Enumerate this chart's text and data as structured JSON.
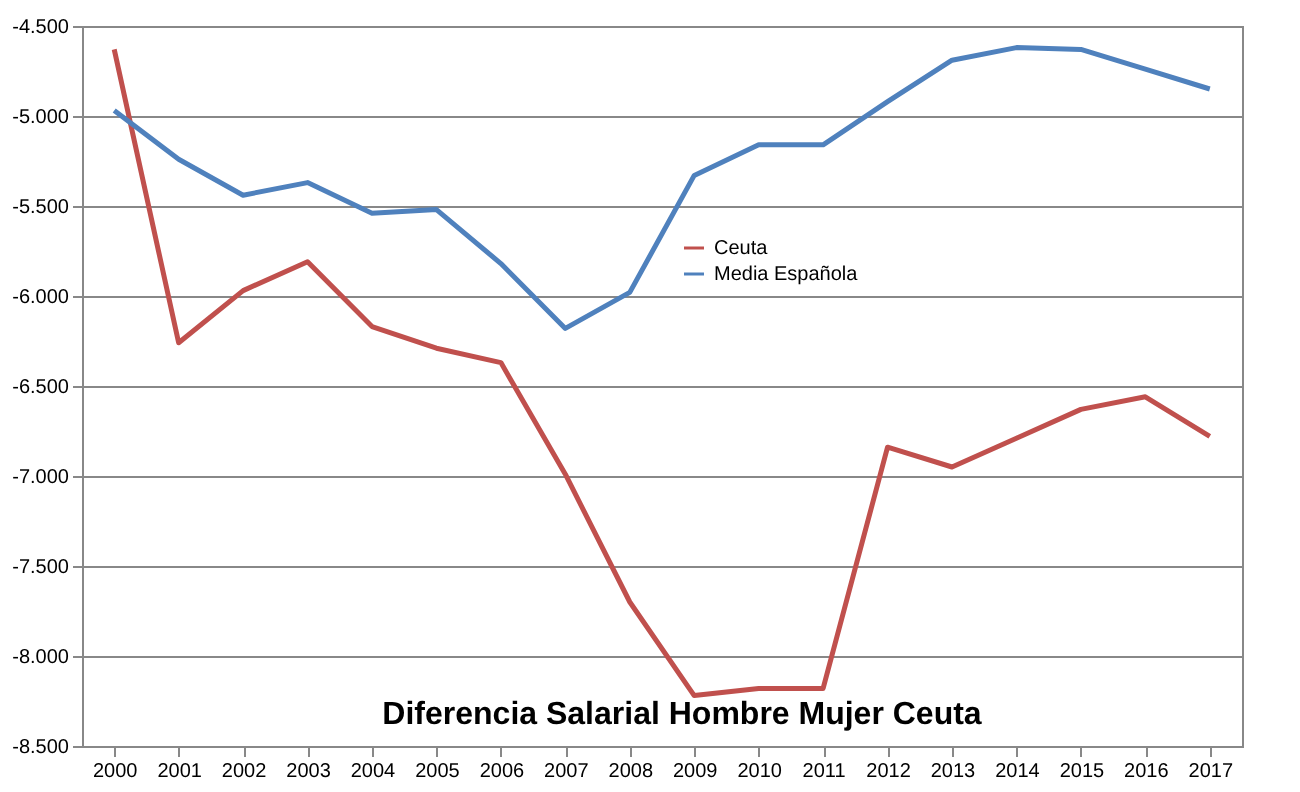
{
  "chart_data": {
    "type": "line",
    "title": "Diferencia  Salarial Hombre Mujer Ceuta",
    "categories": [
      "2000",
      "2001",
      "2002",
      "2003",
      "2004",
      "2005",
      "2006",
      "2007",
      "2008",
      "2009",
      "2010",
      "2011",
      "2012",
      "2013",
      "2014",
      "2015",
      "2016",
      "2017"
    ],
    "series": [
      {
        "name": "Ceuta",
        "color": "#c0504d",
        "values": [
          -4630,
          -6260,
          -5970,
          -5810,
          -6170,
          -6290,
          -6370,
          -6990,
          -7700,
          -8220,
          -8180,
          -8180,
          -6840,
          -6950,
          -6790,
          -6630,
          -6560,
          -6780
        ]
      },
      {
        "name": "Media Española",
        "color": "#4f81bd",
        "values": [
          -4970,
          -5240,
          -5440,
          -5370,
          -5540,
          -5520,
          -5820,
          -6180,
          -5980,
          -5330,
          -5160,
          -5160,
          -4920,
          -4690,
          -4620,
          -4630,
          -4740,
          -4850
        ]
      }
    ],
    "ylim": [
      -8500,
      -4500
    ],
    "yticks": [
      {
        "value": -8500,
        "label": "-8.500"
      },
      {
        "value": -8000,
        "label": "-8.000"
      },
      {
        "value": -7500,
        "label": "-7.500"
      },
      {
        "value": -7000,
        "label": "-7.000"
      },
      {
        "value": -6500,
        "label": "-6.500"
      },
      {
        "value": -6000,
        "label": "-6.000"
      },
      {
        "value": -5500,
        "label": "-5.500"
      },
      {
        "value": -5000,
        "label": "-5.000"
      },
      {
        "value": -4500,
        "label": "-4.500"
      }
    ],
    "grid": "y",
    "legend": "center",
    "marker": "none",
    "line_style": "solid"
  }
}
